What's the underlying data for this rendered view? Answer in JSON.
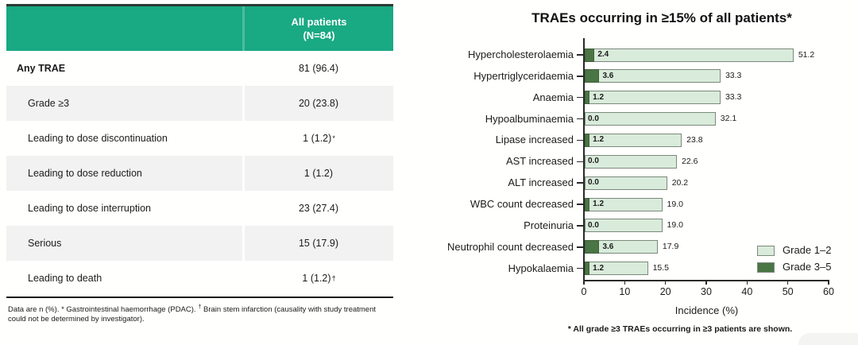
{
  "colors": {
    "header_green": "#19a983",
    "table_topline": "#2c3a34",
    "row_alt_gray": "#f2f2f2",
    "bar_light_green": "#d9ebdb",
    "bar_dark_green": "#4a7544",
    "bar_border": "#7c897c"
  },
  "figure": {
    "table": {
      "header": {
        "title_line1": "All patients",
        "title_line2": "(N=84)"
      },
      "rows": [
        {
          "label": "Any TRAE",
          "value": "81 (96.4)",
          "sup": ""
        },
        {
          "label": "Grade ≥3",
          "value": "20 (23.8)",
          "sup": ""
        },
        {
          "label": "Leading to dose discontinuation",
          "value": "1 (1.2)",
          "sup": "*"
        },
        {
          "label": "Leading to dose reduction",
          "value": "1 (1.2)",
          "sup": ""
        },
        {
          "label": "Leading to dose interruption",
          "value": "23 (27.4)",
          "sup": ""
        },
        {
          "label": "Serious",
          "value": "15 (17.9)",
          "sup": ""
        },
        {
          "label": "Leading to death",
          "value": "1 (1.2)",
          "sup": "†"
        }
      ],
      "footnote": {
        "part1": "Data are n (%). ",
        "marker1": "*",
        "part2": " Gastrointestinal haemorrhage (PDAC). ",
        "marker2": "†",
        "part3": " Brain stem infarction (causality with study treatment could not be determined by investigator)."
      }
    }
  },
  "chart_data": {
    "type": "bar",
    "orientation": "horizontal",
    "stacked": true,
    "title": "TRAEs occurring in ≥15% of all patients*",
    "categories": [
      "Hypercholesterolaemia",
      "Hypertriglyceridaemia",
      "Anaemia",
      "Hypoalbuminaemia",
      "Lipase increased",
      "AST increased",
      "ALT increased",
      "WBC count decreased",
      "Proteinuria",
      "Neutrophil count decreased",
      "Hypokalaemia"
    ],
    "series": [
      {
        "name": "Grade 3–5",
        "color": "#4a7544",
        "values": [
          2.4,
          3.6,
          1.2,
          0.0,
          1.2,
          0.0,
          0.0,
          1.2,
          0.0,
          3.6,
          1.2
        ]
      },
      {
        "name": "Grade 1–2",
        "color": "#d9ebdb",
        "values": [
          48.8,
          29.7,
          32.1,
          32.1,
          22.6,
          22.6,
          20.2,
          17.8,
          19.0,
          14.3,
          14.3
        ]
      }
    ],
    "grade_3_5_labels": [
      "2.4",
      "3.6",
      "1.2",
      "0.0",
      "1.2",
      "0.0",
      "0.0",
      "1.2",
      "0.0",
      "3.6",
      "1.2"
    ],
    "total_labels": [
      "51.2",
      "33.3",
      "33.3",
      "32.1",
      "23.8",
      "22.6",
      "20.2",
      "19.0",
      "19.0",
      "17.9",
      "15.5"
    ],
    "xlabel": "Incidence (%)",
    "xlim": [
      0,
      60
    ],
    "xticks": [
      0,
      10,
      20,
      30,
      40,
      50,
      60
    ],
    "grid": false,
    "legend_position": "inside-bottom-right",
    "legend": [
      {
        "label": "Grade 1–2",
        "color": "#d9ebdb"
      },
      {
        "label": "Grade 3–5",
        "color": "#4a7544"
      }
    ],
    "footnote": "* All grade ≥3 TRAEs occurring in ≥3 patients are shown."
  }
}
